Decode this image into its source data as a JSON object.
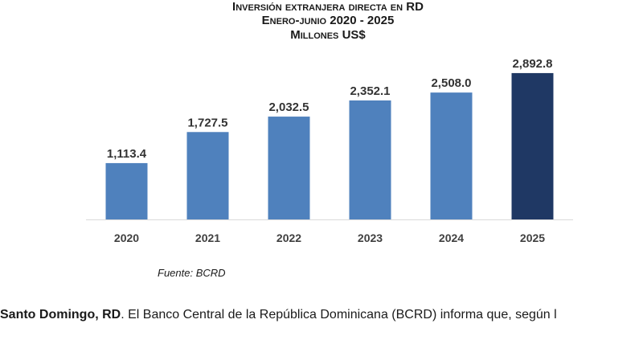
{
  "chart_data": {
    "type": "bar",
    "title": "Inversión extranjera directa en RD",
    "subtitle": "Enero-junio 2020 - 2025",
    "unit_label": "Millones US$",
    "categories": [
      "2020",
      "2021",
      "2022",
      "2023",
      "2024",
      "2025"
    ],
    "values": [
      1113.4,
      1727.5,
      2032.5,
      2352.1,
      2508.0,
      2892.8
    ],
    "value_labels": [
      "1,113.4",
      "1,727.5",
      "2,032.5",
      "2,352.1",
      "2,508.0",
      "2,892.8"
    ],
    "ylim": [
      0,
      3400
    ],
    "grid": false,
    "colors": {
      "bar": "#4f81bd",
      "highlight_bar": "#1f3864",
      "axis": "#d9d9d9"
    },
    "highlight_index": 5
  },
  "source": "Fuente: BCRD",
  "body": {
    "lead": "Santo Domingo, RD",
    "text": ". El Banco Central de la República Dominicana (BCRD) informa que, según l"
  }
}
